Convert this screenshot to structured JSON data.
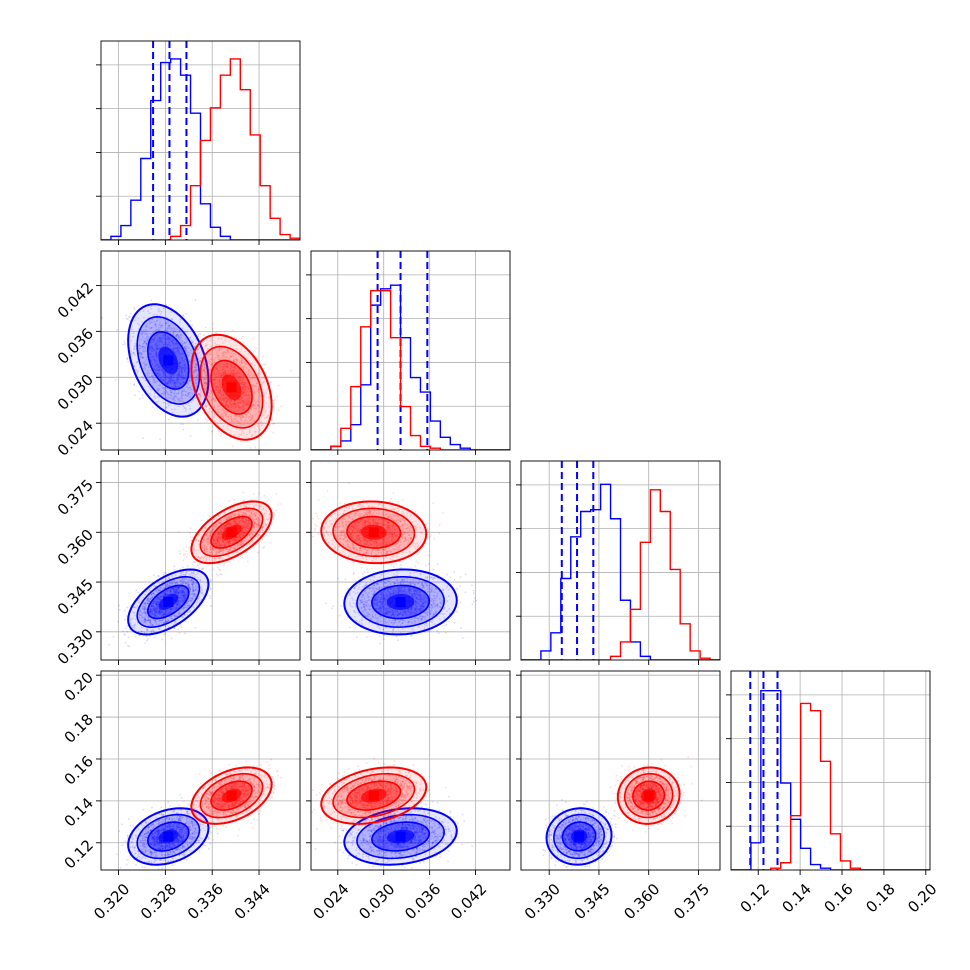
{
  "chart_data": {
    "type": "corner",
    "parameters": [
      {
        "range": [
          0.317,
          0.351
        ],
        "ticks": [
          "0.320",
          "0.328",
          "0.336",
          "0.344"
        ],
        "tick_values": [
          0.32,
          0.328,
          0.336,
          0.344
        ]
      },
      {
        "range": [
          0.0205,
          0.0465
        ],
        "ticks": [
          "0.024",
          "0.030",
          "0.036",
          "0.042"
        ],
        "tick_values": [
          0.024,
          0.03,
          0.036,
          0.042
        ]
      },
      {
        "range": [
          0.3215,
          0.3815
        ],
        "ticks": [
          "0.330",
          "0.345",
          "0.360",
          "0.375"
        ],
        "tick_values": [
          0.33,
          0.345,
          0.36,
          0.375
        ]
      },
      {
        "range": [
          0.107,
          0.202
        ],
        "ticks": [
          "0.12",
          "0.14",
          "0.16",
          "0.18",
          "0.20"
        ],
        "tick_values": [
          0.12,
          0.14,
          0.16,
          0.18,
          0.2
        ]
      }
    ],
    "series": [
      {
        "color": "#0000ff",
        "means": [
          0.3285,
          0.0322,
          0.339,
          0.123
        ],
        "sds": [
          0.0028,
          0.003,
          0.004,
          0.0055
        ],
        "correlations": {
          "1-0": -0.35,
          "2-0": 0.55,
          "2-1": 0.05,
          "3-0": 0.3,
          "3-1": 0.2,
          "3-2": 0.05
        },
        "quantile_lines": [
          [
            0.3259,
            0.3287,
            0.3316
          ],
          [
            0.0292,
            0.0322,
            0.0357
          ],
          [
            0.3338,
            0.3384,
            0.3433
          ],
          [
            0.1162,
            0.1225,
            0.1292
          ]
        ],
        "histograms": [
          [
            0,
            2,
            8,
            22,
            45,
            77,
            98,
            100,
            91,
            70,
            20,
            7,
            2,
            0,
            0,
            0,
            0,
            0,
            0,
            0
          ],
          [
            0,
            0,
            2,
            5,
            14,
            36,
            80,
            89,
            91,
            62,
            40,
            32,
            16,
            7,
            3,
            1,
            0,
            0,
            0,
            0
          ],
          [
            0,
            0,
            5,
            15,
            45,
            68,
            82,
            83,
            97,
            78,
            33,
            10,
            2,
            0,
            0,
            0,
            0,
            0,
            0,
            0
          ],
          [
            0,
            0,
            15,
            99,
            99,
            48,
            28,
            12,
            3,
            1,
            0,
            0,
            0,
            0,
            0,
            0,
            0,
            0,
            0,
            0
          ]
        ]
      },
      {
        "color": "#ff0000",
        "means": [
          0.3393,
          0.0287,
          0.36,
          0.1425
        ],
        "sds": [
          0.0028,
          0.0028,
          0.0038,
          0.0055
        ],
        "correlations": {
          "1-0": -0.35,
          "2-0": 0.55,
          "2-1": -0.05,
          "3-0": 0.4,
          "3-1": 0.3,
          "3-2": 0.05
        },
        "quantile_lines": [],
        "histograms": [
          [
            0,
            0,
            0,
            0,
            0,
            0,
            0,
            2,
            8,
            30,
            55,
            73,
            91,
            100,
            83,
            58,
            30,
            12,
            3,
            1
          ],
          [
            0,
            0,
            2,
            12,
            35,
            68,
            88,
            88,
            62,
            24,
            8,
            2,
            1,
            0,
            0,
            0,
            0,
            0,
            0,
            0
          ],
          [
            0,
            0,
            0,
            0,
            0,
            0,
            0,
            0,
            0,
            2,
            10,
            28,
            65,
            94,
            82,
            50,
            20,
            5,
            1,
            0
          ],
          [
            0,
            0,
            0,
            0,
            1,
            4,
            30,
            92,
            88,
            60,
            20,
            5,
            1,
            0,
            0,
            0,
            0,
            0,
            0,
            0
          ]
        ]
      }
    ]
  }
}
